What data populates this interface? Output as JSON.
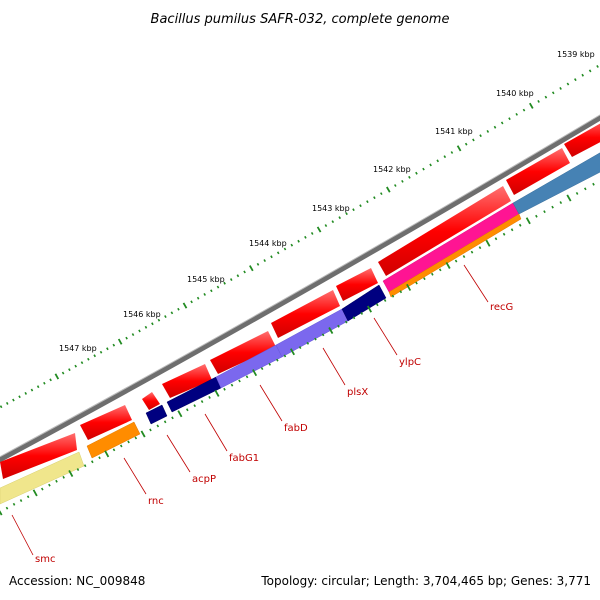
{
  "title": "Bacillus pumilus SAFR-032, complete genome",
  "scale_labels": [
    "1539 kbp",
    "1540 kbp",
    "1541 kbp",
    "1542 kbp",
    "1543 kbp",
    "1544 kbp",
    "1545 kbp",
    "1546 kbp",
    "1547 kbp"
  ],
  "genes": [
    {
      "name": "smc",
      "color": "#f0e68c"
    },
    {
      "name": "rnc",
      "color": "#ff8c00"
    },
    {
      "name": "acpP",
      "color": "#000080"
    },
    {
      "name": "fabG1",
      "color": "#000080"
    },
    {
      "name": "fabD",
      "color": "#7b68ee"
    },
    {
      "name": "plsX",
      "color": "#7b68ee"
    },
    {
      "name": "ylpC",
      "color": "#000080"
    },
    {
      "name": "recG",
      "color": "#ff1493"
    }
  ],
  "colors": {
    "backbone": "#808080",
    "cds_strand": "#ff0000",
    "scale_ticks": "#228b22",
    "label_text": "#c00000",
    "extra_gene_blue": "#4682b4"
  },
  "footer": {
    "accession": "Accession: NC_009848",
    "summary": "Topology: circular; Length: 3,704,465 bp; Genes: 3,771"
  }
}
